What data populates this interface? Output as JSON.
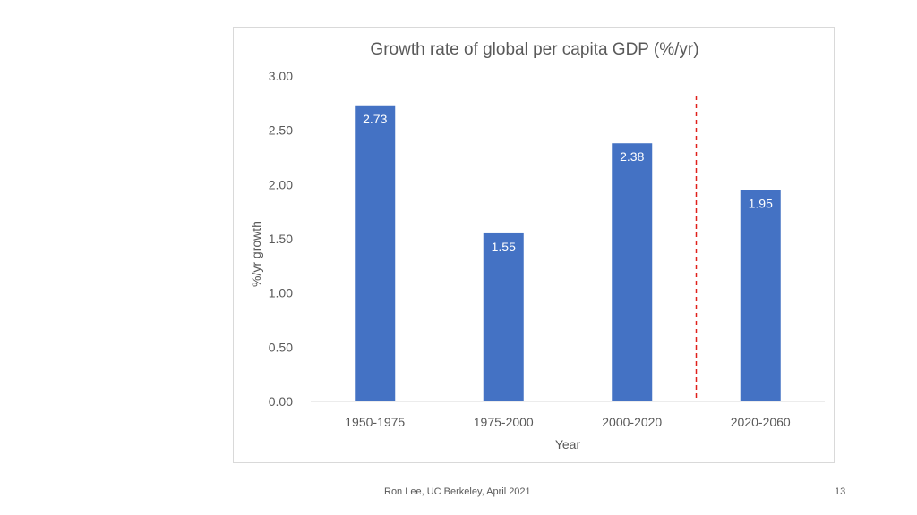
{
  "chart_data": {
    "type": "bar",
    "title": "Growth rate of global per capita GDP (%/yr)",
    "xlabel": "Year",
    "ylabel": "%/yr growth",
    "categories": [
      "1950-1975",
      "1975-2000",
      "2000-2020",
      "2020-2060"
    ],
    "values": [
      2.73,
      1.55,
      2.38,
      1.95
    ],
    "data_labels": [
      "2.73",
      "1.55",
      "2.38",
      "1.95"
    ],
    "ylim": [
      0,
      3
    ],
    "yticks": [
      "0.00",
      "0.50",
      "1.00",
      "1.50",
      "2.00",
      "2.50",
      "3.00"
    ],
    "grid": false,
    "annotations": [
      {
        "type": "vertical-dashed-line",
        "between": [
          "2000-2020",
          "2020-2060"
        ],
        "color": "#e0201b"
      }
    ],
    "colors": {
      "bar": "#4472c4",
      "axis": "#d9d9d9",
      "text": "#595959",
      "data_label": "#ffffff"
    }
  },
  "footer": {
    "credit": "Ron Lee, UC Berkeley, April 2021",
    "slide_number": "13"
  }
}
